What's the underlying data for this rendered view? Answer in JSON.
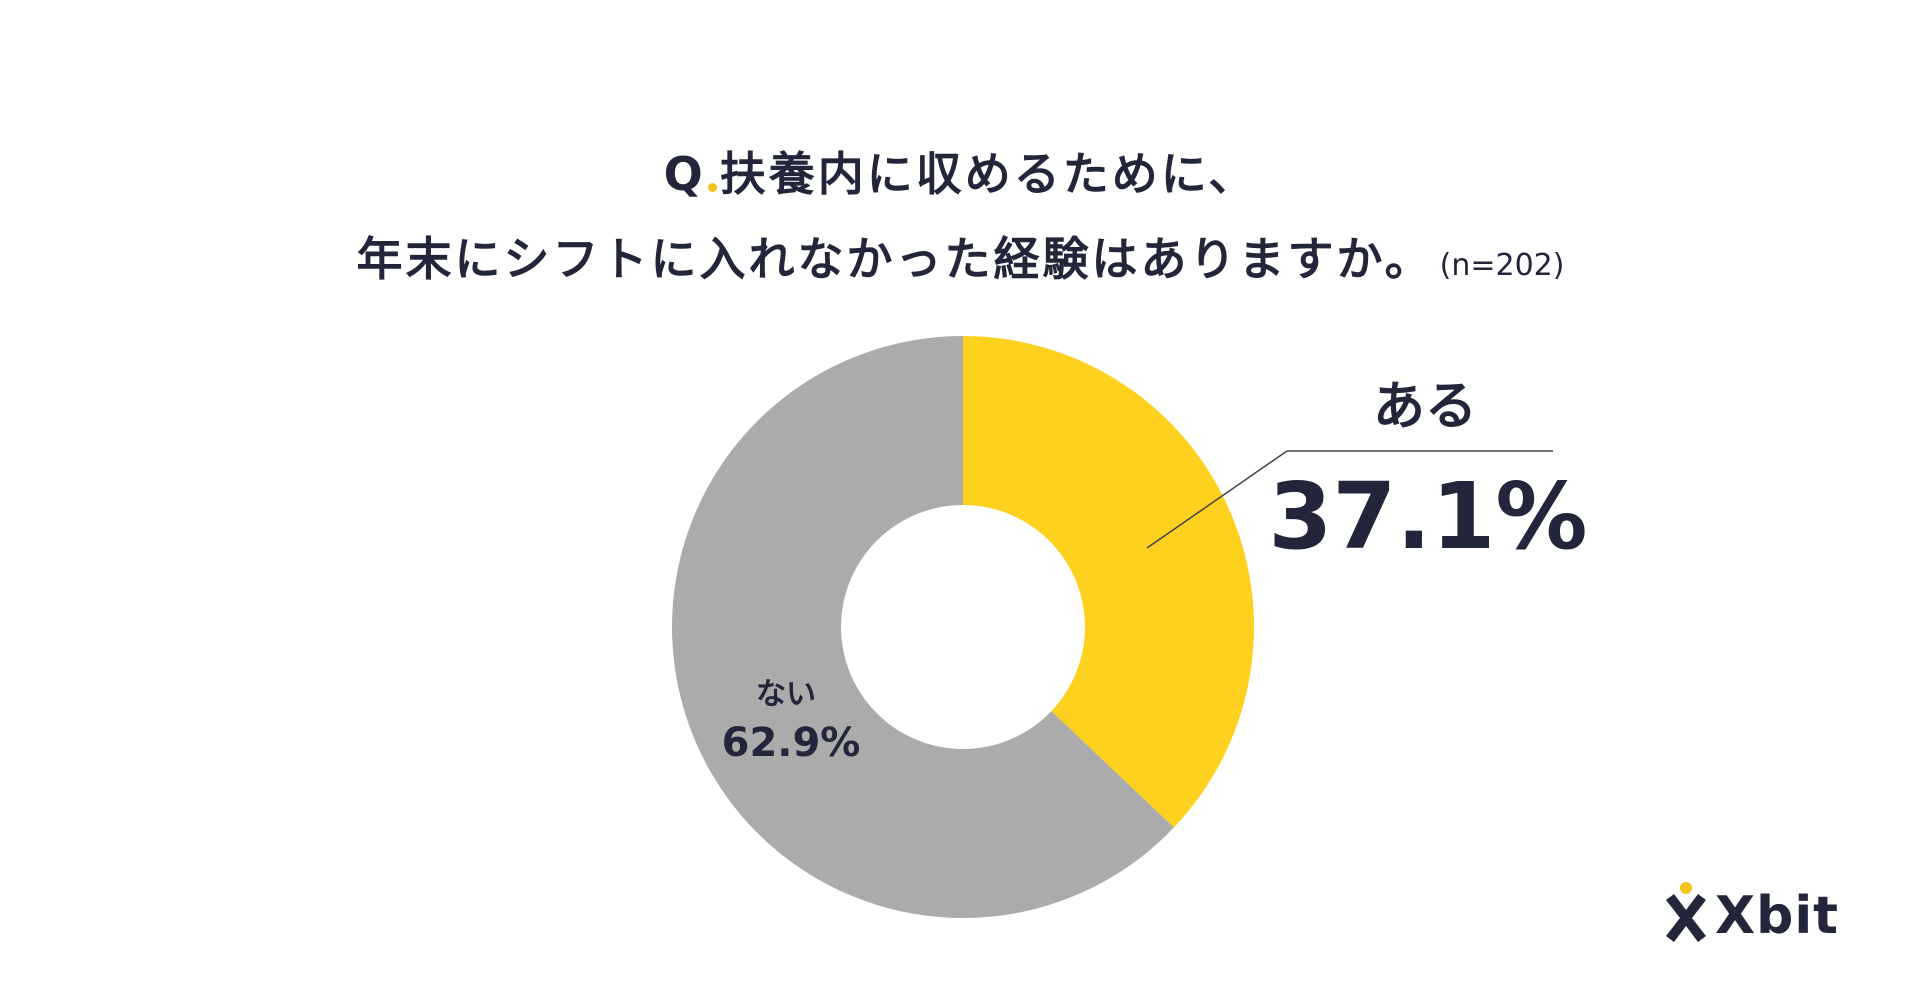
{
  "title": {
    "q_label": "Q",
    "line1": "扶養内に収めるために、",
    "line2": "年末にシフトに入れなかった経験はありますか。",
    "sample": "(n=202)"
  },
  "colors": {
    "yes": "#FDD11E",
    "no": "#ABABAB",
    "text": "#23263A",
    "accent": "#F2C419"
  },
  "chart_data": {
    "type": "pie",
    "donut": true,
    "slices": [
      {
        "label": "ある",
        "value": 37.1,
        "value_label": "37.1%"
      },
      {
        "label": "ない",
        "value": 62.9,
        "value_label": "62.9%"
      }
    ]
  },
  "logo": {
    "text": "Xbit",
    "icon": "person-x-icon"
  }
}
